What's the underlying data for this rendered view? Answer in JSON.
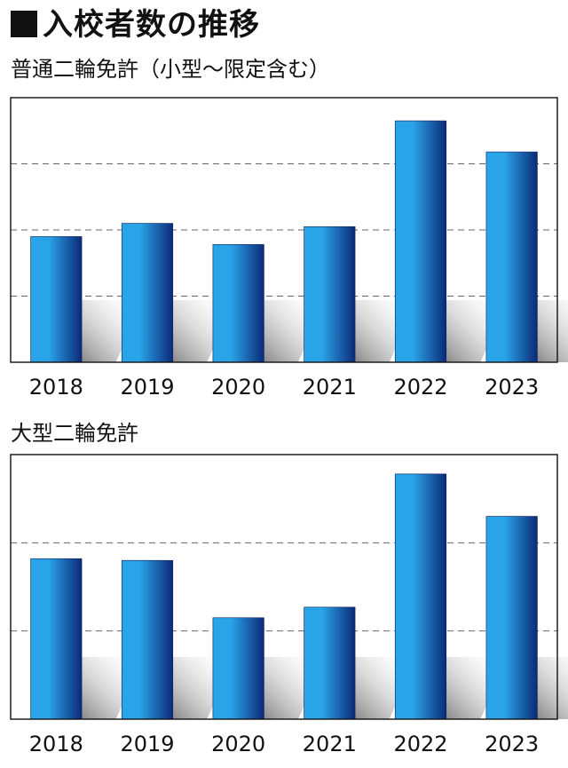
{
  "page": {
    "title": "入校者数の推移"
  },
  "chart_data": [
    {
      "type": "bar",
      "title": "普通二輪免許（小型～限定含む）",
      "xlabel": "",
      "ylabel": "",
      "categories": [
        "2018",
        "2019",
        "2020",
        "2021",
        "2022",
        "2023"
      ],
      "values": [
        190,
        210,
        178,
        205,
        365,
        318
      ],
      "ylim": [
        0,
        400
      ],
      "yticks": [
        100,
        200,
        300
      ],
      "grid": true,
      "colors": {
        "bar_light": "#2aa4e8",
        "bar_dark": "#0b2a78",
        "frame": "#111111",
        "grid": "#666666"
      }
    },
    {
      "type": "bar",
      "title": "大型二輪免許",
      "xlabel": "",
      "ylabel": "",
      "categories": [
        "2018",
        "2019",
        "2020",
        "2021",
        "2022",
        "2023"
      ],
      "values": [
        182,
        180,
        115,
        127,
        278,
        230
      ],
      "ylim": [
        0,
        300
      ],
      "yticks": [
        100,
        200,
        300
      ],
      "grid": true,
      "colors": {
        "bar_light": "#2aa4e8",
        "bar_dark": "#0b2a78",
        "frame": "#111111",
        "grid": "#666666"
      }
    }
  ]
}
